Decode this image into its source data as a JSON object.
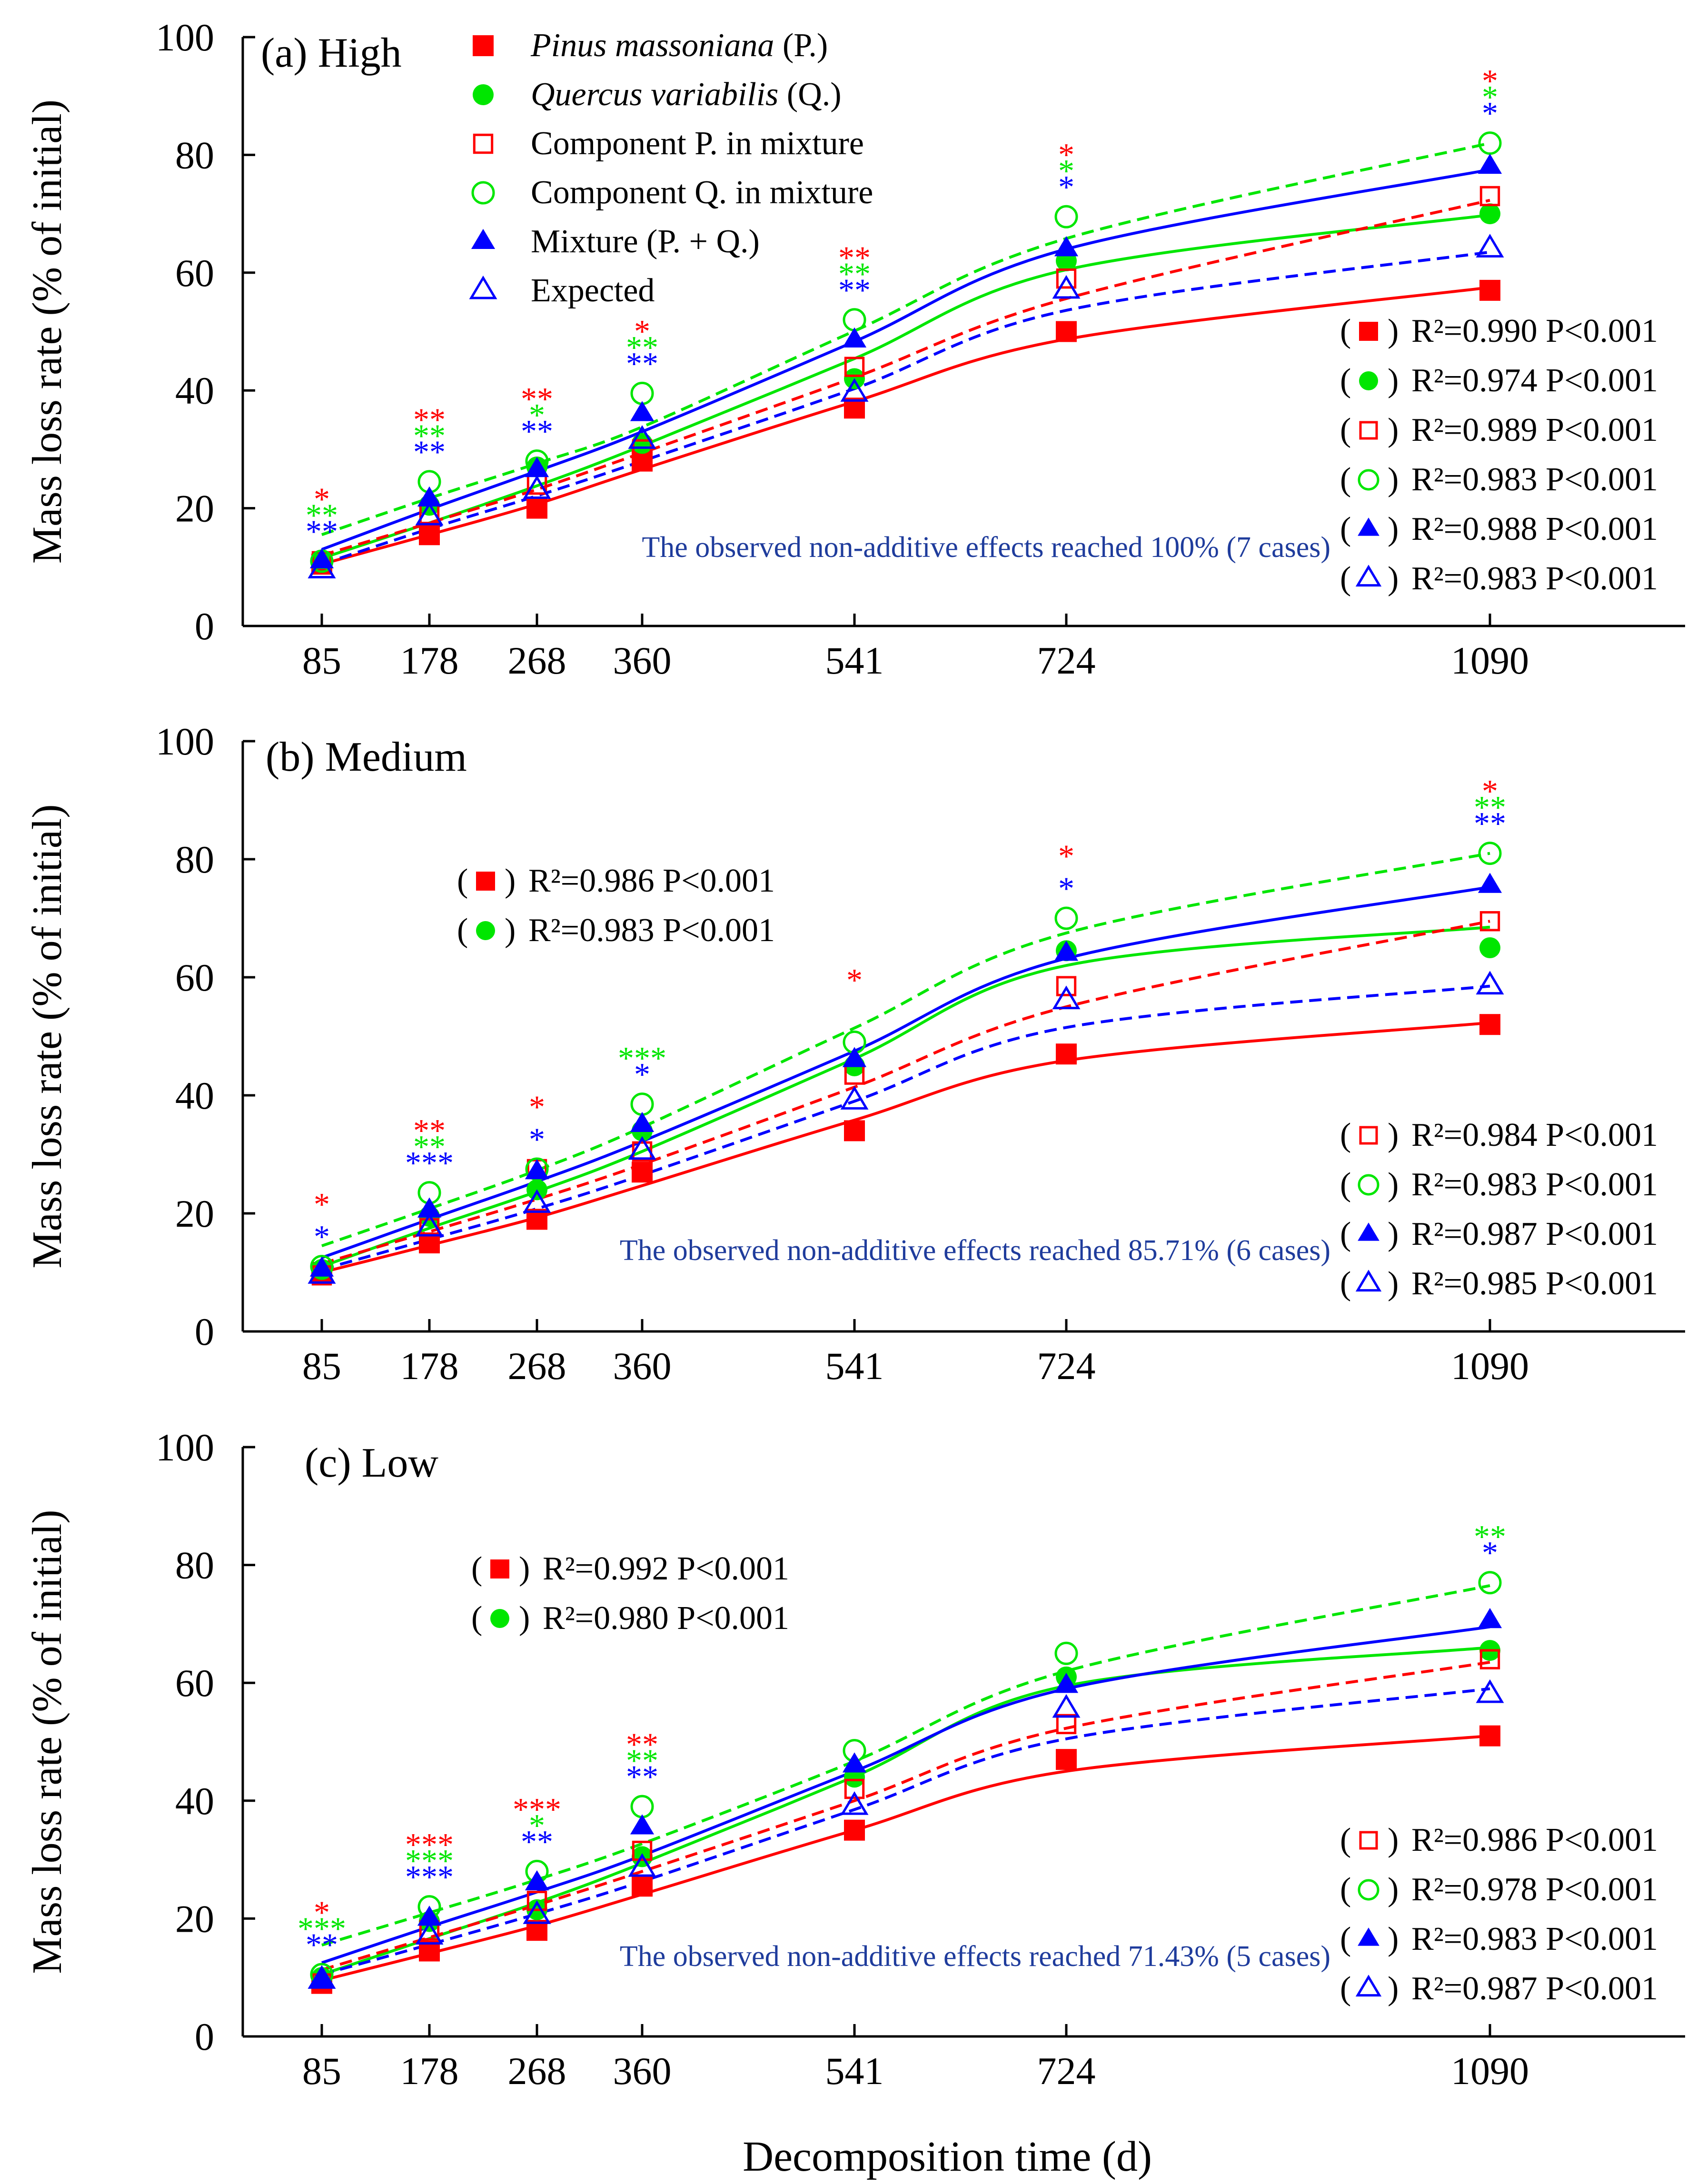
{
  "figure": {
    "ylabel": "Mass loss rate (% of initial)",
    "xlabel": "Decomposition time (d)"
  },
  "legend": {
    "items": [
      {
        "key": "P",
        "italic": "Pinus massoniana",
        "rest": " (P.)"
      },
      {
        "key": "Q",
        "italic": "Quercus variabilis",
        "rest": " (Q.)"
      },
      {
        "key": "Pm",
        "text": "Component P. in mixture"
      },
      {
        "key": "Qm",
        "text": "Component Q. in mixture"
      },
      {
        "key": "M",
        "text": "Mixture (P. + Q.)"
      },
      {
        "key": "E",
        "text": "Expected"
      }
    ]
  },
  "styles": {
    "P": {
      "color": "#ff0000",
      "marker": "square-filled",
      "dash": false
    },
    "Q": {
      "color": "#00e600",
      "marker": "circle-filled",
      "dash": false
    },
    "Pm": {
      "color": "#ff0000",
      "marker": "square-open",
      "dash": true
    },
    "Qm": {
      "color": "#00e600",
      "marker": "circle-open",
      "dash": true
    },
    "M": {
      "color": "#0000ff",
      "marker": "triangle-filled",
      "dash": false
    },
    "E": {
      "color": "#0000ff",
      "marker": "triangle-open",
      "dash": true
    }
  },
  "annotation_colors": {
    "red": "#ff0000",
    "green": "#00e600",
    "blue": "#0000ff",
    "note": "#1f3c9c"
  },
  "chart_data": [
    {
      "type": "scatter",
      "title": "(a) High",
      "x": [
        85,
        178,
        268,
        360,
        541,
        724,
        1090
      ],
      "xlim": [
        0,
        1300
      ],
      "ylim": [
        0,
        100
      ],
      "yticks": [
        0,
        20,
        40,
        60,
        80,
        100
      ],
      "xlabel": "Decomposition time (d)",
      "ylabel": "Mass loss rate (% of initial)",
      "series": [
        {
          "key": "P",
          "name": "Pinus massoniana (P.)",
          "values": [
            10.5,
            15.5,
            20,
            28,
            37,
            50,
            57
          ],
          "fit": [
            10.5,
            15.5,
            20.7,
            26.6,
            38.1,
            48.7,
            57.5
          ],
          "r2": "R²=0.990 P<0.001"
        },
        {
          "key": "Q",
          "name": "Quercus variabilis (Q.)",
          "values": [
            11,
            20.5,
            27,
            31,
            42,
            62,
            70
          ],
          "fit": [
            11.5,
            17.5,
            23.8,
            30.6,
            45.4,
            60.5,
            69.8
          ],
          "r2": "R²=0.974 P<0.001"
        },
        {
          "key": "Pm",
          "name": "Component P. in mixture",
          "values": [
            11,
            19,
            24,
            30,
            44,
            59,
            73
          ],
          "fit": [
            12,
            17.5,
            23.2,
            29.4,
            42.2,
            55.6,
            72.3
          ],
          "r2": "R²=0.989 P<0.001"
        },
        {
          "key": "Qm",
          "name": "Component Q. in mixture",
          "values": [
            11,
            24.5,
            28,
            39.5,
            52,
            69.5,
            82
          ],
          "fit": [
            15.5,
            21.7,
            27.6,
            33.8,
            50.1,
            65.8,
            82
          ],
          "r2": "R²=0.983 P<0.001"
        },
        {
          "key": "M",
          "name": "Mixture (P. + Q.)",
          "values": [
            11,
            21.5,
            26.5,
            36,
            48.5,
            64,
            78
          ],
          "fit": [
            13,
            19.8,
            26.3,
            33,
            48.3,
            64,
            77.5
          ],
          "r2": "R²=0.988 P<0.001"
        },
        {
          "key": "E",
          "name": "Expected",
          "values": [
            9.5,
            18.5,
            23,
            31.5,
            39.5,
            57,
            64
          ],
          "fit": [
            10.5,
            16.5,
            22.1,
            28,
            40.3,
            53.6,
            63.5
          ],
          "r2": "R²=0.983 P<0.001"
        }
      ],
      "r2_box": {
        "position": "right-middle",
        "keys": [
          "P",
          "Q",
          "Pm",
          "Qm",
          "M",
          "E"
        ]
      },
      "note": "The observed non-additive effects reached 100% (7 cases)",
      "sig": [
        {
          "x": 85,
          "red": "*",
          "green": "**",
          "blue": "**"
        },
        {
          "x": 178,
          "red": "**",
          "green": "**",
          "blue": "**"
        },
        {
          "x": 268,
          "red": "**",
          "green": "*",
          "blue": "**"
        },
        {
          "x": 360,
          "red": "*",
          "green": "**",
          "blue": "**"
        },
        {
          "x": 541,
          "red": "**",
          "green": "**",
          "blue": "**"
        },
        {
          "x": 724,
          "red": "*",
          "green": "*",
          "blue": "*"
        },
        {
          "x": 1090,
          "red": "*",
          "green": "*",
          "blue": "*"
        }
      ]
    },
    {
      "type": "scatter",
      "title": "(b) Medium",
      "x": [
        85,
        178,
        268,
        360,
        541,
        724,
        1090
      ],
      "xlim": [
        0,
        1300
      ],
      "ylim": [
        0,
        100
      ],
      "yticks": [
        0,
        20,
        40,
        60,
        80,
        100
      ],
      "xlabel": "Decomposition time (d)",
      "ylabel": "Mass loss rate (% of initial)",
      "series": [
        {
          "key": "P",
          "name": "Pinus massoniana (P.)",
          "values": [
            10,
            15,
            19,
            27,
            34,
            47,
            52
          ],
          "fit": [
            10,
            14.6,
            19.3,
            24.7,
            35.8,
            45.9,
            52.3
          ],
          "r2": "R²=0.986 P<0.001"
        },
        {
          "key": "Q",
          "name": "Quercus variabilis (Q.)",
          "values": [
            10.5,
            19.5,
            24,
            34,
            45,
            64.5,
            65
          ],
          "fit": [
            11,
            17.5,
            23.7,
            30.5,
            46.2,
            62,
            68.5
          ],
          "r2": "R²=0.983 P<0.001"
        },
        {
          "key": "Pm",
          "name": "Component P. in mixture",
          "values": [
            9.5,
            17.5,
            27.5,
            30.5,
            43.5,
            58.5,
            69.5
          ],
          "fit": [
            11.5,
            16.9,
            22.4,
            28.3,
            41.4,
            55,
            69.5
          ],
          "r2": "R²=0.984 P<0.001"
        },
        {
          "key": "Qm",
          "name": "Component Q. in mixture",
          "values": [
            11,
            23.5,
            27.5,
            38.5,
            49,
            70,
            81
          ],
          "fit": [
            14.5,
            20.8,
            27.3,
            34.6,
            51.4,
            67.5,
            81
          ],
          "r2": "R²=0.983 P<0.001"
        },
        {
          "key": "M",
          "name": "Mixture (P. + Q.)",
          "values": [
            10.5,
            20.5,
            27,
            35,
            46,
            64,
            75.5
          ],
          "fit": [
            12.5,
            19,
            25.4,
            32.2,
            47.5,
            63.2,
            75.3
          ],
          "r2": "R²=0.987 P<0.001"
        },
        {
          "key": "E",
          "name": "Expected",
          "values": [
            9.5,
            17.5,
            21.5,
            30.5,
            39,
            56,
            58.5
          ],
          "fit": [
            10.5,
            15.6,
            20.8,
            26.5,
            39,
            51.5,
            58.5
          ],
          "r2": "R²=0.985 P<0.001"
        }
      ],
      "r2_box_top": {
        "position": "upper-left",
        "keys": [
          "P",
          "Q"
        ]
      },
      "r2_box": {
        "position": "right-lower",
        "keys": [
          "Pm",
          "Qm",
          "M",
          "E"
        ]
      },
      "note": "The observed non-additive effects reached 85.71% (6 cases)",
      "sig": [
        {
          "x": 85,
          "red": "*",
          "green": "",
          "blue": "*"
        },
        {
          "x": 178,
          "red": "**",
          "green": "**",
          "blue": "***"
        },
        {
          "x": 268,
          "red": "*",
          "green": "",
          "blue": "*"
        },
        {
          "x": 360,
          "red": "",
          "green": "***",
          "blue": "*"
        },
        {
          "x": 541,
          "red": "*",
          "green": "",
          "blue": ""
        },
        {
          "x": 724,
          "red": "*",
          "green": "",
          "blue": "*"
        },
        {
          "x": 1090,
          "red": "*",
          "green": "**",
          "blue": "**"
        }
      ]
    },
    {
      "type": "scatter",
      "title": "(c) Low",
      "x": [
        85,
        178,
        268,
        360,
        541,
        724,
        1090
      ],
      "xlim": [
        0,
        1300
      ],
      "ylim": [
        0,
        100
      ],
      "yticks": [
        0,
        20,
        40,
        60,
        80,
        100
      ],
      "xlabel": "Decomposition time (d)",
      "ylabel": "Mass loss rate (% of initial)",
      "series": [
        {
          "key": "P",
          "name": "Pinus massoniana (P.)",
          "values": [
            9,
            14.5,
            18,
            25.5,
            35,
            47,
            51
          ],
          "fit": [
            9.5,
            14.1,
            18.8,
            24.1,
            35,
            45,
            51
          ],
          "r2": "R²=0.992 P<0.001"
        },
        {
          "key": "Q",
          "name": "Quercus variabilis (Q.)",
          "values": [
            10,
            19.5,
            21.5,
            30.5,
            44,
            61,
            65.5
          ],
          "fit": [
            10.5,
            16.6,
            22.7,
            29.4,
            44.1,
            59.5,
            66
          ],
          "r2": "R²=0.980 P<0.001"
        },
        {
          "key": "Pm",
          "name": "Component P. in mixture",
          "values": [
            9,
            18,
            23,
            31.5,
            42,
            53,
            64
          ],
          "fit": [
            11.3,
            16.8,
            22.3,
            28,
            40,
            52.3,
            63.5
          ],
          "r2": "R²=0.986 P<0.001"
        },
        {
          "key": "Qm",
          "name": "Component Q. in mixture",
          "values": [
            10.5,
            22,
            28,
            39,
            48.5,
            65,
            77
          ],
          "fit": [
            15.5,
            21,
            26.6,
            32.7,
            46.7,
            62,
            76.5
          ],
          "r2": "R²=0.978 P<0.001"
        },
        {
          "key": "M",
          "name": "Mixture (P. + Q.)",
          "values": [
            9.5,
            20,
            26,
            35.5,
            46,
            59.5,
            70.5
          ],
          "fit": [
            12.5,
            18.6,
            24.5,
            30.7,
            45,
            59,
            69.5
          ],
          "r2": "R²=0.983 P<0.001"
        },
        {
          "key": "E",
          "name": "Expected",
          "values": [
            9.5,
            17,
            20.5,
            28.5,
            39,
            55.5,
            58
          ],
          "fit": [
            10.5,
            15.6,
            20.8,
            26.3,
            38.5,
            50.5,
            59
          ],
          "r2": "R²=0.987 P<0.001"
        }
      ],
      "r2_box_top": {
        "position": "upper-left",
        "keys": [
          "P",
          "Q"
        ]
      },
      "r2_box": {
        "position": "right-lower",
        "keys": [
          "Pm",
          "Qm",
          "M",
          "E"
        ]
      },
      "note": "The observed non-additive effects reached 71.43% (5 cases)",
      "sig": [
        {
          "x": 85,
          "red": "*",
          "green": "***",
          "blue": "**"
        },
        {
          "x": 178,
          "red": "***",
          "green": "***",
          "blue": "***"
        },
        {
          "x": 268,
          "red": "***",
          "green": "*",
          "blue": "**"
        },
        {
          "x": 360,
          "red": "**",
          "green": "**",
          "blue": "**"
        },
        {
          "x": 541,
          "red": "",
          "green": "",
          "blue": ""
        },
        {
          "x": 724,
          "red": "",
          "green": "",
          "blue": ""
        },
        {
          "x": 1090,
          "red": "",
          "green": "**",
          "blue": "*"
        }
      ]
    }
  ]
}
